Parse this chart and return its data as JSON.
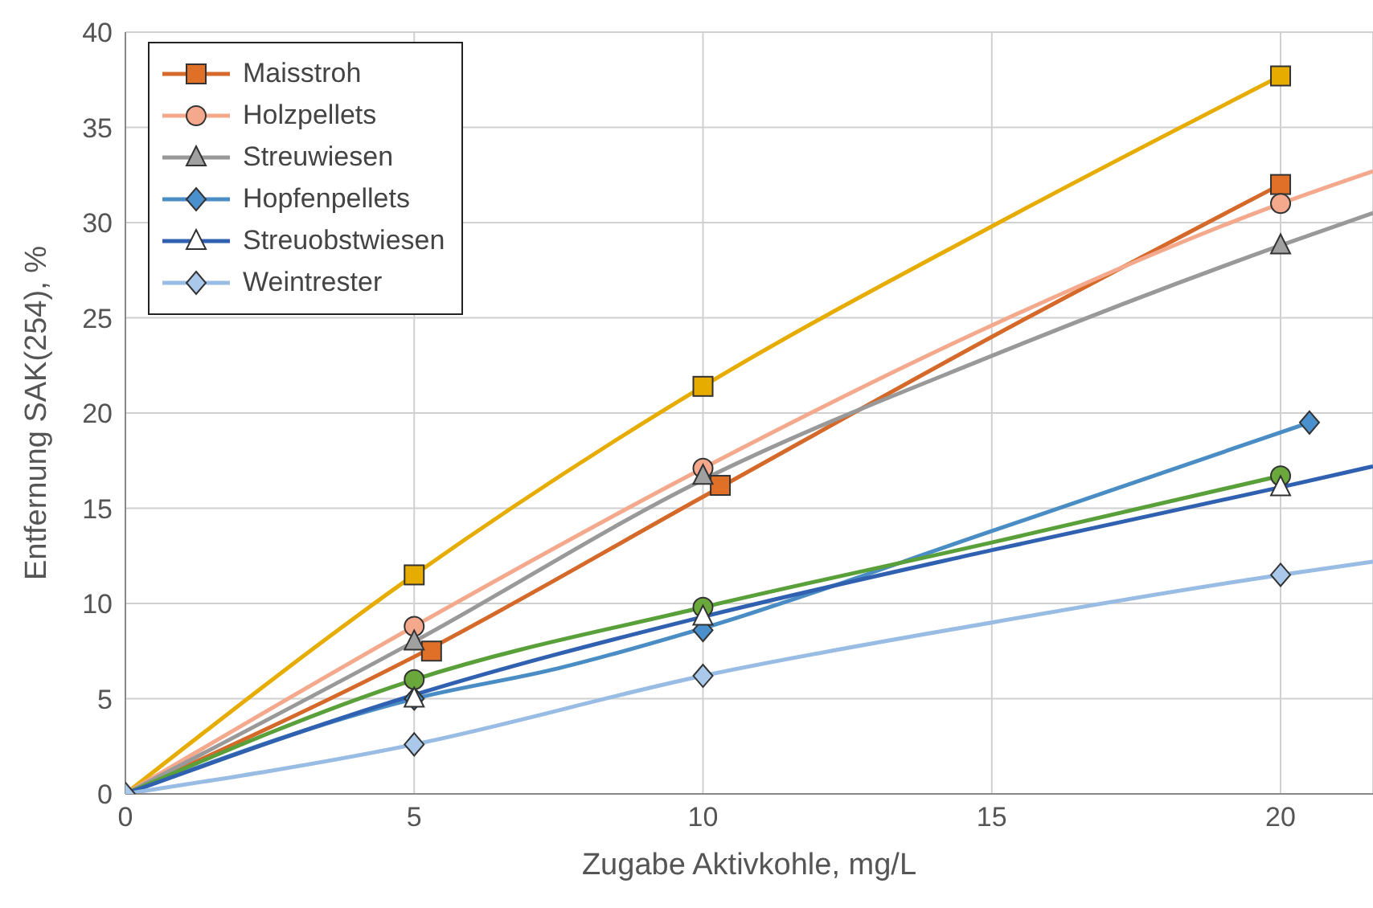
{
  "chart_data": {
    "type": "scatter",
    "xlabel": "Zugabe Aktivkohle, mg/L",
    "ylabel": "Entfernung SAK(254), %",
    "xlim": [
      0,
      21.6
    ],
    "xticks": [
      0,
      5,
      10,
      15,
      20
    ],
    "ylim": [
      0,
      40
    ],
    "yticks": [
      0,
      5,
      10,
      15,
      20,
      25,
      30,
      35,
      40
    ],
    "grid": true,
    "legend": "top left",
    "series": [
      {
        "marker": "square",
        "color": "#e6ac00",
        "x": [
          5,
          10,
          20
        ],
        "values": [
          11.5,
          21.4,
          37.7
        ]
      },
      {
        "name": "Maisstroh",
        "marker": "square",
        "color": "#e07028",
        "x": [
          5.3,
          10.3,
          20
        ],
        "values": [
          7.5,
          16.2,
          32
        ]
      },
      {
        "name": "Holzpellets",
        "marker": "circle",
        "color": "#f4a98c",
        "x": [
          5,
          10,
          20
        ],
        "values": [
          8.8,
          17.1,
          31
        ]
      },
      {
        "name": "Streuwiesen",
        "marker": "triangle",
        "color": "#a0a0a0",
        "x": [
          5,
          10,
          20
        ],
        "values": [
          8,
          16.7,
          28.8
        ]
      },
      {
        "name": "Hopfenpellets",
        "marker": "diamond",
        "color": "#4a90cc",
        "x": [
          5,
          10,
          20.5
        ],
        "values": [
          5,
          8.6,
          19.5
        ]
      },
      {
        "marker": "circle",
        "color": "#6aa83c",
        "x": [
          5,
          10,
          20
        ],
        "values": [
          6,
          9.8,
          16.7
        ]
      },
      {
        "name": "Streuobstwiesen",
        "marker": "triangle",
        "color": "#ffffff",
        "x": [
          5,
          10,
          20
        ],
        "values": [
          5,
          9.3,
          16.1
        ]
      },
      {
        "name": "Weintrester",
        "marker": "diamond",
        "color": "#a9c8ea",
        "x": [
          0,
          5,
          10,
          20
        ],
        "values": [
          0,
          2.6,
          6.2,
          11.5
        ]
      },
      {
        "type": "line",
        "color": "#e6ac00",
        "x": [
          0,
          5,
          10,
          15,
          20
        ],
        "values": [
          0,
          11.5,
          21.4,
          29.8,
          37.7
        ]
      },
      {
        "type": "line",
        "color": "#d4692a",
        "x": [
          0,
          5,
          10,
          15,
          20
        ],
        "values": [
          0,
          7.2,
          15.6,
          24,
          32
        ]
      },
      {
        "type": "line",
        "color": "#f4a98c",
        "x": [
          0,
          5,
          10,
          15,
          20,
          21.6
        ],
        "values": [
          0,
          8.8,
          17.1,
          24.6,
          31,
          32.7
        ]
      },
      {
        "type": "line",
        "color": "#999999",
        "x": [
          0,
          5,
          10,
          15,
          20,
          21.6
        ],
        "values": [
          0,
          8,
          16.5,
          23,
          28.8,
          30.5
        ]
      },
      {
        "type": "line",
        "color": "#4a8cc4",
        "x": [
          0,
          5,
          7.5,
          10,
          15,
          20.5
        ],
        "values": [
          0,
          5,
          6.6,
          8.7,
          13.8,
          19.5
        ]
      },
      {
        "type": "line",
        "color": "#5aa03a",
        "x": [
          0,
          5,
          10,
          15,
          20
        ],
        "values": [
          0,
          6,
          9.8,
          13.2,
          16.7
        ]
      },
      {
        "type": "line",
        "color": "#3060b0",
        "x": [
          0,
          5,
          10,
          15,
          20,
          21.6
        ],
        "values": [
          0,
          5.2,
          9.3,
          12.8,
          16.1,
          17.2
        ]
      },
      {
        "type": "line",
        "color": "#98bce4",
        "x": [
          0,
          5,
          10,
          15,
          20,
          21.6
        ],
        "values": [
          0,
          2.6,
          6.2,
          9,
          11.5,
          12.2
        ]
      }
    ]
  }
}
